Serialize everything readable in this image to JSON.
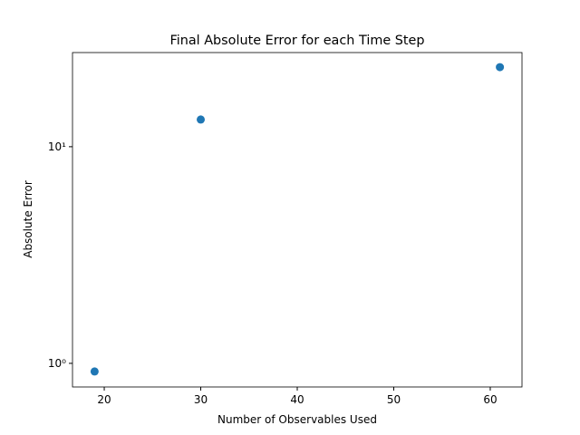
{
  "chart_data": {
    "type": "scatter",
    "title": "Final Absolute Error for each Time Step",
    "x_label": "Number of Observables Used",
    "y_label": "Absolute Error",
    "x": [
      19,
      30,
      61
    ],
    "values": [
      0.917,
      13.35,
      23.3
    ],
    "color": "#1f77b4",
    "xlim": [
      16.71,
      63.29
    ],
    "ylim": [
      0.778,
      27.2
    ],
    "y_scale": "log",
    "xticks": [
      20,
      30,
      40,
      50,
      60
    ],
    "yticks": [
      {
        "value": 1,
        "label": "10⁰"
      },
      {
        "value": 10,
        "label": "10¹"
      }
    ]
  }
}
